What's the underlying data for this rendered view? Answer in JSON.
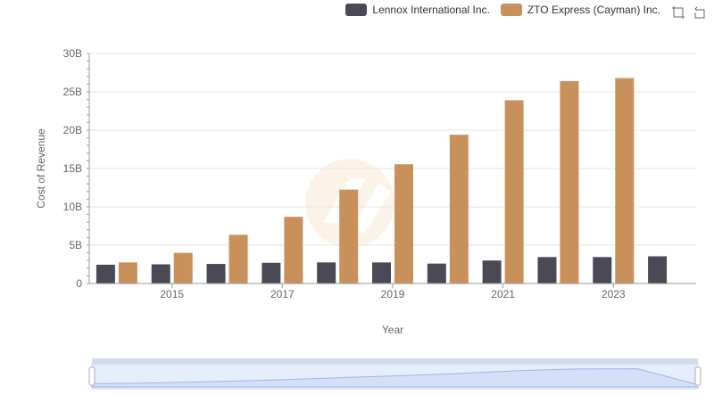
{
  "colors": {
    "lennox": "#4a4a56",
    "zto": "#c8915c"
  },
  "icons": [
    "zoom-icon",
    "restore-icon"
  ],
  "chart_data": {
    "type": "bar",
    "x": [
      2014,
      2015,
      2016,
      2017,
      2018,
      2019,
      2020,
      2021,
      2022,
      2023,
      2024
    ],
    "x_tick_labels": [
      "2015",
      "2017",
      "2019",
      "2021",
      "2023"
    ],
    "xlabel": "Year",
    "ylabel": "Cost of Revenue",
    "ylim": [
      0,
      30000000000
    ],
    "y_tick_labels": [
      "0",
      "5B",
      "10B",
      "15B",
      "20B",
      "25B",
      "30B"
    ],
    "grid": true,
    "legend_position": "top-right",
    "series": [
      {
        "name": "Lennox International Inc.",
        "values": [
          2450000000,
          2500000000,
          2550000000,
          2700000000,
          2750000000,
          2750000000,
          2600000000,
          3000000000,
          3450000000,
          3450000000,
          3550000000
        ]
      },
      {
        "name": "ZTO Express (Cayman) Inc.",
        "values": [
          2750000000,
          4000000000,
          6350000000,
          8700000000,
          12250000000,
          15550000000,
          19400000000,
          23900000000,
          26400000000,
          26800000000,
          null
        ]
      }
    ]
  }
}
